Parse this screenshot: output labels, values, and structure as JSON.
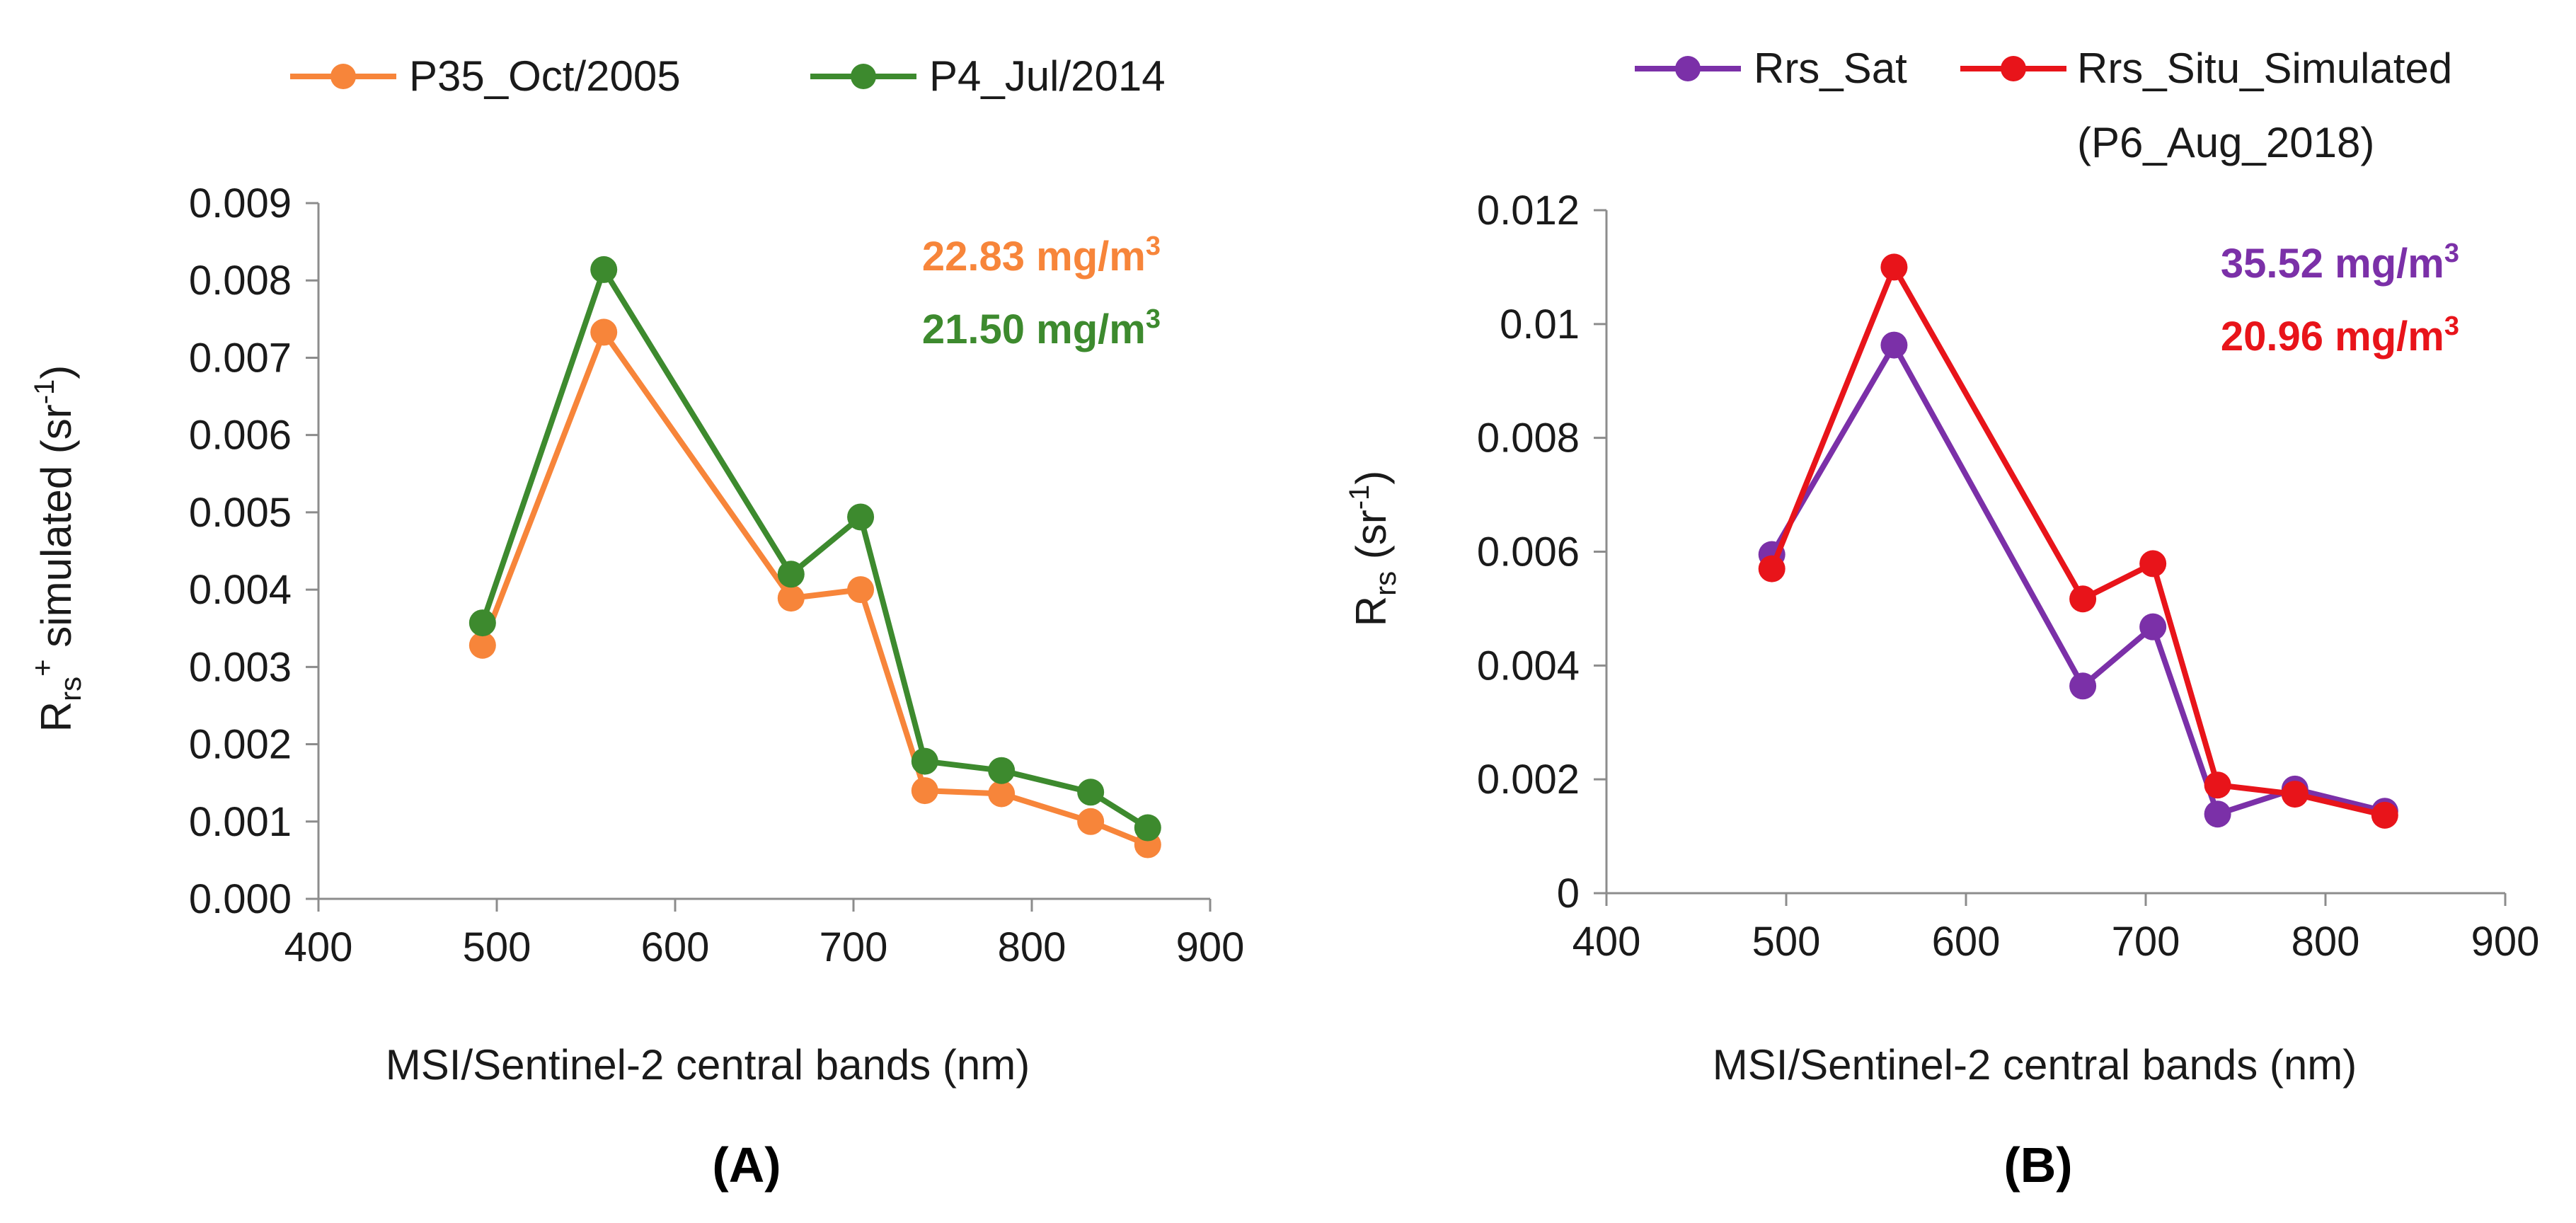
{
  "chart_data": [
    {
      "type": "line",
      "panel_label": "(A)",
      "xlabel": "MSI/Sentinel-2 central bands (nm)",
      "ylabel_main": "R",
      "ylabel_sub": "rs",
      "ylabel_sup": "+",
      "ylabel_rest": " simulated (sr",
      "ylabel_exp": "-1",
      "ylabel_close": ")",
      "xlim": [
        400,
        900
      ],
      "ylim": [
        0,
        0.009
      ],
      "xticks": [
        "400",
        "500",
        "600",
        "700",
        "800",
        "900"
      ],
      "yticks": [
        "0.000",
        "0.001",
        "0.002",
        "0.003",
        "0.004",
        "0.005",
        "0.006",
        "0.007",
        "0.008",
        "0.009"
      ],
      "legend_position": "top",
      "series": [
        {
          "name": "P35_Oct/2005",
          "color": "#f7853a",
          "x": [
            492,
            560,
            665,
            704,
            740,
            783,
            833,
            865
          ],
          "y": [
            0.00328,
            0.00733,
            0.00389,
            0.004,
            0.0014,
            0.00136,
            0.001,
            0.0007
          ]
        },
        {
          "name": "P4_Jul/2014",
          "color": "#3d8a2e",
          "x": [
            492,
            560,
            665,
            704,
            740,
            783,
            833,
            865
          ],
          "y": [
            0.00357,
            0.00814,
            0.0042,
            0.00494,
            0.00178,
            0.00166,
            0.00138,
            0.00092
          ]
        }
      ],
      "annotations": [
        {
          "value": "22.83 mg/m",
          "exp": "3",
          "color": "#f7853a"
        },
        {
          "value": "21.50 mg/m",
          "exp": "3",
          "color": "#3d8a2e"
        }
      ]
    },
    {
      "type": "line",
      "panel_label": "(B)",
      "xlabel": "MSI/Sentinel-2 central bands (nm)",
      "ylabel_main": "R",
      "ylabel_sub": "rs",
      "ylabel_rest": " (sr",
      "ylabel_exp": "-1",
      "ylabel_close": ")",
      "xlim": [
        400,
        900
      ],
      "ylim": [
        0,
        0.012
      ],
      "xticks": [
        "400",
        "500",
        "600",
        "700",
        "800",
        "900"
      ],
      "yticks": [
        "0",
        "0.002",
        "0.004",
        "0.006",
        "0.008",
        "0.01",
        "0.012"
      ],
      "legend_position": "top",
      "series": [
        {
          "name": "Rrs_Sat",
          "color": "#7b30a8",
          "x": [
            492,
            560,
            665,
            704,
            740,
            783,
            833
          ],
          "y": [
            0.00595,
            0.00963,
            0.00364,
            0.00468,
            0.00139,
            0.00183,
            0.00144
          ]
        },
        {
          "name": "Rrs_Situ_Simulated",
          "name_line2": "(P6_Aug_2018)",
          "color": "#e8141a",
          "x": [
            492,
            560,
            665,
            704,
            740,
            783,
            833
          ],
          "y": [
            0.0057,
            0.011,
            0.00517,
            0.00579,
            0.0019,
            0.00174,
            0.00137
          ]
        }
      ],
      "annotations": [
        {
          "value": "35.52 mg/m",
          "exp": "3",
          "color": "#7b30a8"
        },
        {
          "value": "20.96 mg/m",
          "exp": "3",
          "color": "#e8141a"
        }
      ]
    }
  ]
}
